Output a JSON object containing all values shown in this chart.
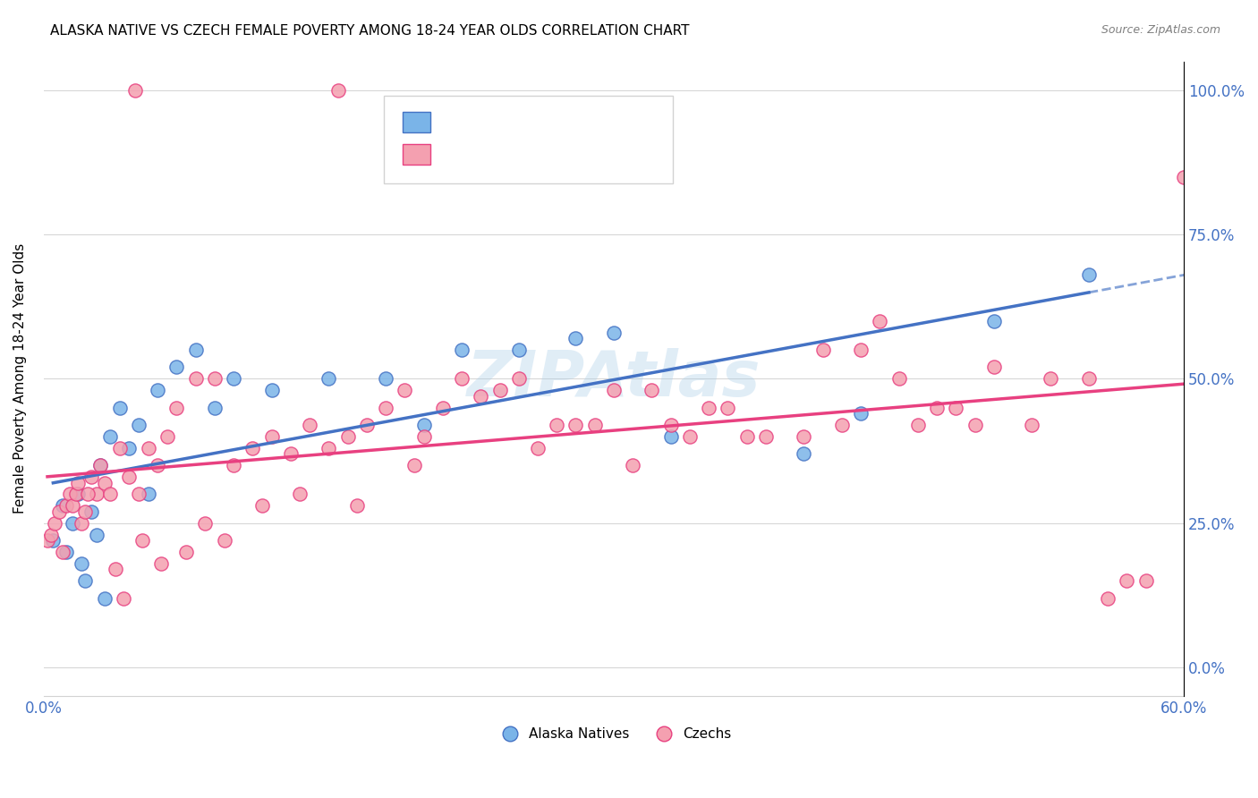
{
  "title": "ALASKA NATIVE VS CZECH FEMALE POVERTY AMONG 18-24 YEAR OLDS CORRELATION CHART",
  "source": "Source: ZipAtlas.com",
  "ylabel": "Female Poverty Among 18-24 Year Olds",
  "yticks": [
    "0.0%",
    "25.0%",
    "50.0%",
    "75.0%",
    "100.0%"
  ],
  "ytick_vals": [
    0,
    25,
    50,
    75,
    100
  ],
  "xrange": [
    0,
    60
  ],
  "yrange": [
    -5,
    105
  ],
  "watermark": "ZIPAtlas",
  "color_blue": "#7ab4e8",
  "color_pink": "#f4a0b0",
  "color_blue_dark": "#4472c4",
  "color_pink_dark": "#e84080",
  "color_r_text": "#4472c4",
  "color_n_text": "#e84080",
  "alaska_x": [
    0.5,
    1.0,
    1.2,
    1.5,
    1.8,
    2.0,
    2.2,
    2.5,
    2.8,
    3.0,
    3.2,
    3.5,
    4.0,
    4.5,
    5.0,
    5.5,
    6.0,
    7.0,
    8.0,
    9.0,
    10.0,
    12.0,
    15.0,
    18.0,
    20.0,
    22.0,
    25.0,
    28.0,
    30.0,
    33.0,
    40.0,
    43.0,
    50.0,
    55.0
  ],
  "alaska_y": [
    22,
    28,
    20,
    25,
    30,
    18,
    15,
    27,
    23,
    35,
    12,
    40,
    45,
    38,
    42,
    30,
    48,
    52,
    55,
    45,
    50,
    48,
    50,
    50,
    42,
    55,
    55,
    57,
    58,
    40,
    37,
    44,
    60,
    68
  ],
  "czech_x": [
    0.2,
    0.4,
    0.6,
    0.8,
    1.0,
    1.2,
    1.4,
    1.5,
    1.7,
    1.8,
    2.0,
    2.2,
    2.5,
    2.8,
    3.0,
    3.2,
    3.5,
    4.0,
    4.5,
    5.0,
    5.5,
    6.0,
    6.5,
    7.0,
    8.0,
    9.0,
    10.0,
    11.0,
    12.0,
    13.0,
    14.0,
    15.0,
    16.0,
    17.0,
    18.0,
    19.0,
    20.0,
    21.0,
    22.0,
    23.0,
    24.0,
    25.0,
    27.0,
    28.0,
    30.0,
    32.0,
    33.0,
    35.0,
    37.0,
    40.0,
    42.0,
    43.0,
    45.0,
    47.0,
    48.0,
    50.0,
    52.0,
    55.0,
    57.0,
    58.0,
    3.8,
    4.2,
    5.2,
    6.2,
    7.5,
    8.5,
    9.5,
    11.5,
    13.5,
    16.5,
    19.5,
    31.0,
    36.0,
    41.0,
    46.0,
    53.0,
    44.0,
    26.0,
    29.0,
    34.0,
    38.0,
    49.0,
    56.0,
    60.0,
    2.3,
    15.5,
    4.8
  ],
  "czech_y": [
    22,
    23,
    25,
    27,
    20,
    28,
    30,
    28,
    30,
    32,
    25,
    27,
    33,
    30,
    35,
    32,
    30,
    38,
    33,
    30,
    38,
    35,
    40,
    45,
    50,
    50,
    35,
    38,
    40,
    37,
    42,
    38,
    40,
    42,
    45,
    48,
    40,
    45,
    50,
    47,
    48,
    50,
    42,
    42,
    48,
    48,
    42,
    45,
    40,
    40,
    42,
    55,
    50,
    45,
    45,
    52,
    42,
    50,
    15,
    15,
    17,
    12,
    22,
    18,
    20,
    25,
    22,
    28,
    30,
    28,
    35,
    35,
    45,
    55,
    42,
    50,
    60,
    38,
    42,
    40,
    40,
    42,
    12,
    85,
    30,
    100,
    100
  ]
}
